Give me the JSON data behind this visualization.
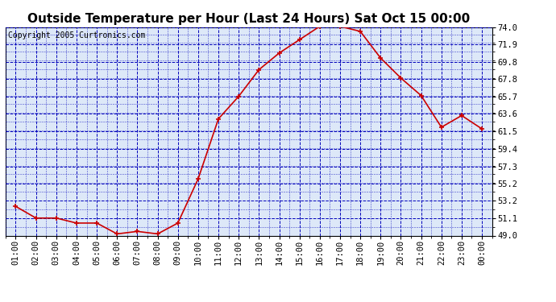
{
  "title": "Outside Temperature per Hour (Last 24 Hours) Sat Oct 15 00:00",
  "copyright": "Copyright 2005 Curtronics.com",
  "hours": [
    "01:00",
    "02:00",
    "03:00",
    "04:00",
    "05:00",
    "06:00",
    "07:00",
    "08:00",
    "09:00",
    "10:00",
    "11:00",
    "12:00",
    "13:00",
    "14:00",
    "15:00",
    "16:00",
    "17:00",
    "18:00",
    "19:00",
    "20:00",
    "21:00",
    "22:00",
    "23:00",
    "00:00"
  ],
  "temperatures": [
    52.5,
    51.1,
    51.1,
    50.5,
    50.5,
    49.2,
    49.5,
    49.2,
    50.5,
    55.8,
    63.0,
    65.7,
    68.9,
    70.9,
    72.5,
    74.1,
    74.1,
    73.5,
    70.3,
    67.9,
    65.8,
    62.0,
    63.4,
    61.8
  ],
  "ymin": 49.0,
  "ymax": 74.0,
  "yticks": [
    49.0,
    51.1,
    53.2,
    55.2,
    57.3,
    59.4,
    61.5,
    63.6,
    65.7,
    67.8,
    69.8,
    71.9,
    74.0
  ],
  "line_color": "#cc0000",
  "marker_color": "#cc0000",
  "bg_color": "#dde8f8",
  "outer_bg": "#ffffff",
  "grid_color": "#0000bb",
  "title_fontsize": 11,
  "copyright_fontsize": 7,
  "tick_fontsize": 7.5
}
